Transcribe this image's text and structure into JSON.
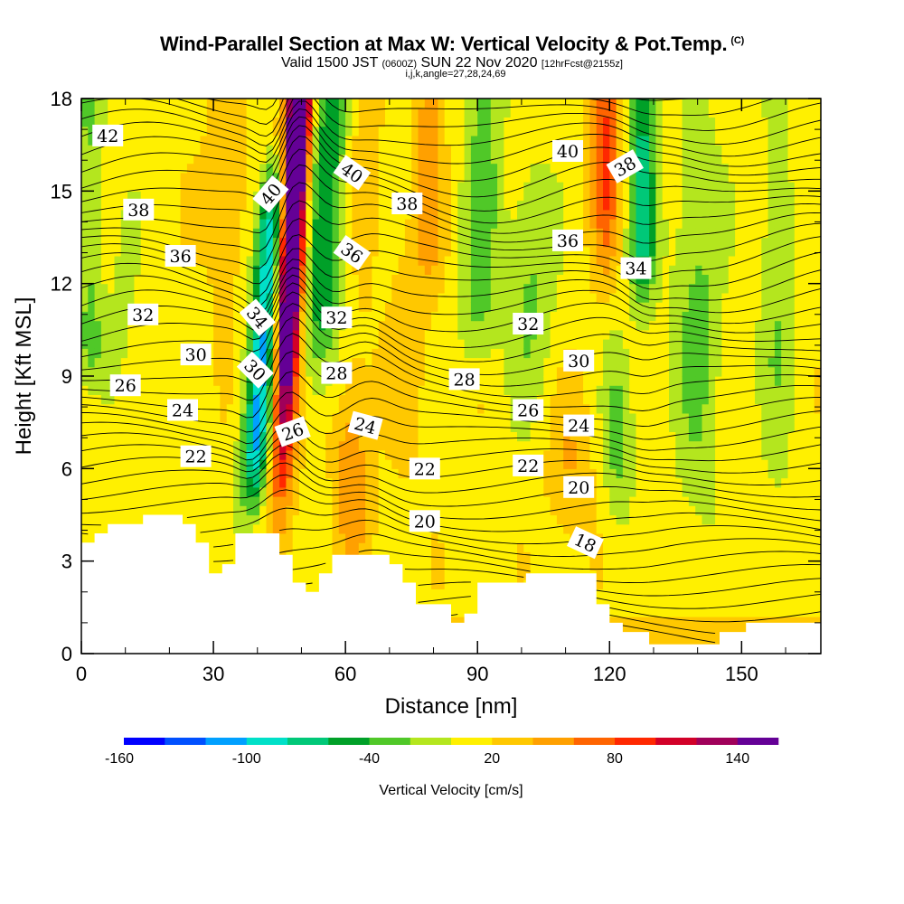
{
  "header": {
    "title": "Wind-Parallel Section at Max W: Vertical Velocity & Pot.Temp.",
    "title_tag": "(C)",
    "valid_prefix": "Valid 1500 JST",
    "valid_utc": "(0600Z)",
    "valid_date": "SUN 22 Nov 2020",
    "forecast": "[12hrFcst@2155z]",
    "ijk": "i,j,k,angle=27,28,24,69"
  },
  "chart_data": {
    "type": "heatmap",
    "xlabel": "Distance [nm]",
    "ylabel": "Height [Kft MSL]",
    "xlim": [
      0,
      168
    ],
    "ylim": [
      0,
      18
    ],
    "x_ticks": [
      "0",
      "30",
      "60",
      "90",
      "120",
      "150"
    ],
    "y_ticks": [
      "0",
      "3",
      "6",
      "9",
      "12",
      "15",
      "18"
    ],
    "colorbar": {
      "title": "Vertical Velocity [cm/s]",
      "range": [
        -160,
        160
      ],
      "step": 20,
      "tick_labels": [
        "-160",
        "-100",
        "-40",
        "20",
        "80",
        "140"
      ],
      "colors": [
        "#0000ff",
        "#0050ff",
        "#00a0ff",
        "#00e0c8",
        "#00c878",
        "#00a028",
        "#50c828",
        "#b4e61e",
        "#fff000",
        "#ffc800",
        "#ffa000",
        "#ff6400",
        "#ff2800",
        "#d20028",
        "#a0005a",
        "#640096"
      ]
    },
    "contour_labels": [
      {
        "text": "42",
        "x": 6,
        "y": 16.8,
        "angle": 0
      },
      {
        "text": "38",
        "x": 13,
        "y": 14.4,
        "angle": 0
      },
      {
        "text": "36",
        "x": 22.5,
        "y": 12.9,
        "angle": 0
      },
      {
        "text": "32",
        "x": 14,
        "y": 11.0,
        "angle": 0
      },
      {
        "text": "30",
        "x": 26,
        "y": 9.7,
        "angle": 0
      },
      {
        "text": "26",
        "x": 10,
        "y": 8.7,
        "angle": 0
      },
      {
        "text": "24",
        "x": 23,
        "y": 7.9,
        "angle": 0
      },
      {
        "text": "22",
        "x": 26,
        "y": 6.4,
        "angle": 0
      },
      {
        "text": "40",
        "x": 43,
        "y": 14.9,
        "angle": -50
      },
      {
        "text": "34",
        "x": 40,
        "y": 10.9,
        "angle": 50
      },
      {
        "text": "30",
        "x": 39.5,
        "y": 9.2,
        "angle": 45
      },
      {
        "text": "26",
        "x": 48,
        "y": 7.2,
        "angle": -20
      },
      {
        "text": "40",
        "x": 61.5,
        "y": 15.6,
        "angle": 35
      },
      {
        "text": "36",
        "x": 61.5,
        "y": 13.0,
        "angle": 35
      },
      {
        "text": "32",
        "x": 58,
        "y": 10.9,
        "angle": 0
      },
      {
        "text": "28",
        "x": 58,
        "y": 9.1,
        "angle": 0
      },
      {
        "text": "24",
        "x": 64.5,
        "y": 7.4,
        "angle": 15
      },
      {
        "text": "38",
        "x": 74,
        "y": 14.6,
        "angle": 0
      },
      {
        "text": "28",
        "x": 87,
        "y": 8.9,
        "angle": 0
      },
      {
        "text": "22",
        "x": 78,
        "y": 6.0,
        "angle": 0
      },
      {
        "text": "20",
        "x": 78,
        "y": 4.3,
        "angle": 0
      },
      {
        "text": "32",
        "x": 101.5,
        "y": 10.7,
        "angle": 0
      },
      {
        "text": "26",
        "x": 101.5,
        "y": 7.9,
        "angle": 0
      },
      {
        "text": "22",
        "x": 101.5,
        "y": 6.1,
        "angle": 0
      },
      {
        "text": "40",
        "x": 110.5,
        "y": 16.3,
        "angle": 0
      },
      {
        "text": "36",
        "x": 110.5,
        "y": 13.4,
        "angle": 0
      },
      {
        "text": "30",
        "x": 113,
        "y": 9.5,
        "angle": 0
      },
      {
        "text": "24",
        "x": 113,
        "y": 7.4,
        "angle": 0
      },
      {
        "text": "20",
        "x": 113,
        "y": 5.4,
        "angle": 0
      },
      {
        "text": "18",
        "x": 114.5,
        "y": 3.6,
        "angle": 25
      },
      {
        "text": "38",
        "x": 123.5,
        "y": 15.8,
        "angle": -30
      },
      {
        "text": "34",
        "x": 126,
        "y": 12.5,
        "angle": 0
      }
    ]
  }
}
